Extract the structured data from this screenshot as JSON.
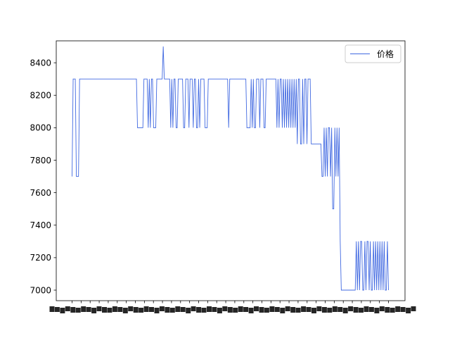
{
  "chart_data": {
    "type": "line",
    "title": "",
    "xlabel": "",
    "ylabel": "",
    "ylim": [
      6935,
      8535
    ],
    "y_ticks": [
      7000,
      7200,
      7400,
      7600,
      7800,
      8000,
      8200,
      8400
    ],
    "x_tick_labels_note": "dense overlapping date labels (illegible)",
    "x_tick_count": 36,
    "grid": false,
    "legend_position": "top-right",
    "series": [
      {
        "name": "价格",
        "color": "#4169e1",
        "values": [
          7700,
          8300,
          8300,
          8300,
          7700,
          7700,
          7700,
          8300,
          8300,
          8300,
          8300,
          8300,
          8300,
          8300,
          8300,
          8300,
          8300,
          8300,
          8300,
          8300,
          8300,
          8300,
          8300,
          8300,
          8300,
          8300,
          8300,
          8300,
          8300,
          8300,
          8300,
          8300,
          8300,
          8300,
          8300,
          8300,
          8300,
          8300,
          8300,
          8300,
          8300,
          8300,
          8300,
          8300,
          8300,
          8300,
          8300,
          8300,
          8300,
          8300,
          8300,
          8300,
          8300,
          8300,
          8300,
          8300,
          8300,
          8300,
          8300,
          8300,
          8300,
          8000,
          8000,
          8000,
          8000,
          8000,
          8000,
          8300,
          8300,
          8300,
          8300,
          8000,
          8300,
          8000,
          8300,
          8300,
          8000,
          8000,
          8000,
          8300,
          8300,
          8300,
          8300,
          8300,
          8300,
          8500,
          8300,
          8300,
          8300,
          8300,
          8300,
          8300,
          8000,
          8300,
          8000,
          8300,
          8300,
          8000,
          8000,
          8300,
          8300,
          8300,
          8300,
          8300,
          8000,
          8000,
          8300,
          8300,
          8300,
          8000,
          8300,
          8300,
          8300,
          8000,
          8300,
          8300,
          8000,
          8000,
          8300,
          8000,
          8300,
          8300,
          8300,
          8300,
          8000,
          8000,
          8000,
          8300,
          8300,
          8300,
          8300,
          8300,
          8300,
          8300,
          8300,
          8300,
          8300,
          8300,
          8300,
          8300,
          8300,
          8300,
          8300,
          8300,
          8300,
          8300,
          8000,
          8300,
          8300,
          8300,
          8300,
          8300,
          8300,
          8300,
          8300,
          8300,
          8300,
          8300,
          8300,
          8300,
          8300,
          8300,
          8300,
          8000,
          8000,
          8000,
          8000,
          8300,
          8000,
          8300,
          8000,
          8000,
          8300,
          8300,
          8300,
          8000,
          8300,
          8300,
          8300,
          8000,
          8000,
          8300,
          8300,
          8300,
          8300,
          8300,
          8300,
          8300,
          8300,
          8300,
          8300,
          8000,
          8300,
          8000,
          8300,
          8300,
          8000,
          8300,
          8000,
          8300,
          8000,
          8300,
          8000,
          8300,
          8000,
          8300,
          8000,
          8300,
          8000,
          8300,
          7900,
          8300,
          8300,
          7900,
          7900,
          8300,
          7900,
          8300,
          8300,
          7900,
          8300,
          8300,
          8300,
          7900,
          7900,
          7900,
          7900,
          7900,
          7900,
          7900,
          7900,
          7900,
          7900,
          7700,
          7700,
          8000,
          7700,
          8000,
          7700,
          8000,
          8000,
          7700,
          8000,
          7500,
          7500,
          8000,
          7700,
          8000,
          7700,
          8000,
          7300,
          7000,
          7000,
          7000,
          7000,
          7000,
          7000,
          7000,
          7000,
          7000,
          7000,
          7000,
          7000,
          7000,
          7000,
          7300,
          7000,
          7300,
          7000,
          7300,
          7300,
          7000,
          7000,
          7300,
          7000,
          7300,
          7300,
          7000,
          7300,
          7000,
          7000,
          7300,
          7000,
          7300,
          7000,
          7300,
          7000,
          7300,
          7000,
          7300,
          7000,
          7300,
          7000,
          7000,
          7300,
          7000
        ]
      }
    ]
  }
}
